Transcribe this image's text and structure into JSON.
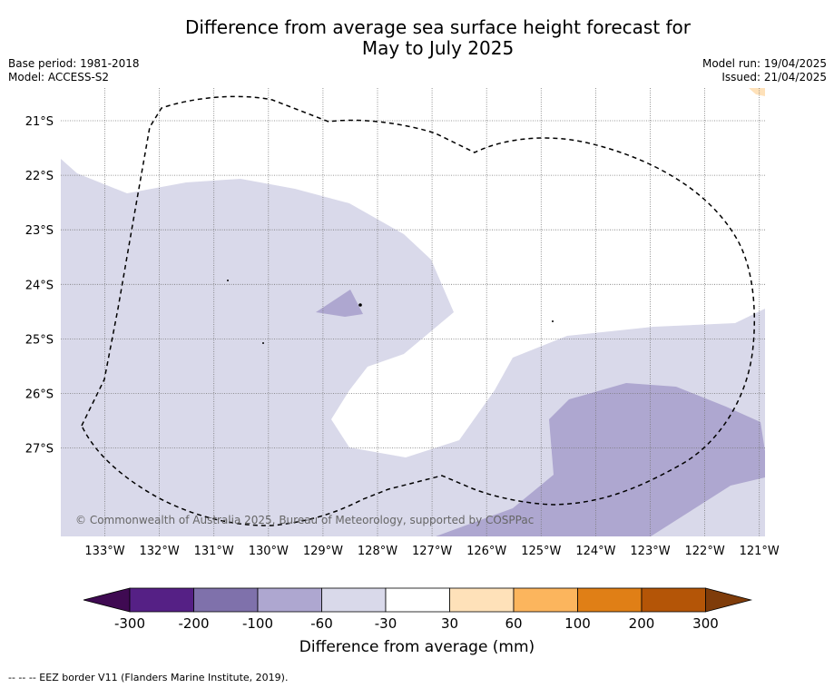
{
  "title_line1": "Difference from average sea surface height forecast for",
  "title_line2": "May to July 2025",
  "base_period": "Base period: 1981-2018",
  "model": "Model: ACCESS-S2",
  "model_run": "Model run: 19/04/2025",
  "issued": "Issued: 21/04/2025",
  "copyright": "© Commonwealth of Australia 2025, Bureau of Meteorology, supported by COSPPac",
  "lon_ticks": [
    "133°W",
    "132°W",
    "131°W",
    "130°W",
    "129°W",
    "128°W",
    "127°W",
    "126°W",
    "125°W",
    "124°W",
    "123°W",
    "122°W",
    "121°W"
  ],
  "lat_ticks": [
    "21°S",
    "22°S",
    "23°S",
    "24°S",
    "25°S",
    "26°S",
    "27°S"
  ],
  "colorbar": {
    "label": "Difference from average (mm)",
    "ticks": [
      "-300",
      "-200",
      "-100",
      "-60",
      "-30",
      "30",
      "60",
      "100",
      "200",
      "300"
    ],
    "colors": [
      "#3f0a52",
      "#552085",
      "#7f71ab",
      "#aea7d0",
      "#d9d9ea",
      "#ffffff",
      "#fee1b9",
      "#fcb55d",
      "#e07f16",
      "#b45507",
      "#7f3c0a"
    ]
  },
  "colors": {
    "band_-60_-30": "#d9d9ea",
    "band_-100_-60": "#aea7d0",
    "band_30_60": "#fee1b9"
  },
  "footnote": "--  --  -- EEZ border V11 (Flanders Marine Institute, 2019)."
}
